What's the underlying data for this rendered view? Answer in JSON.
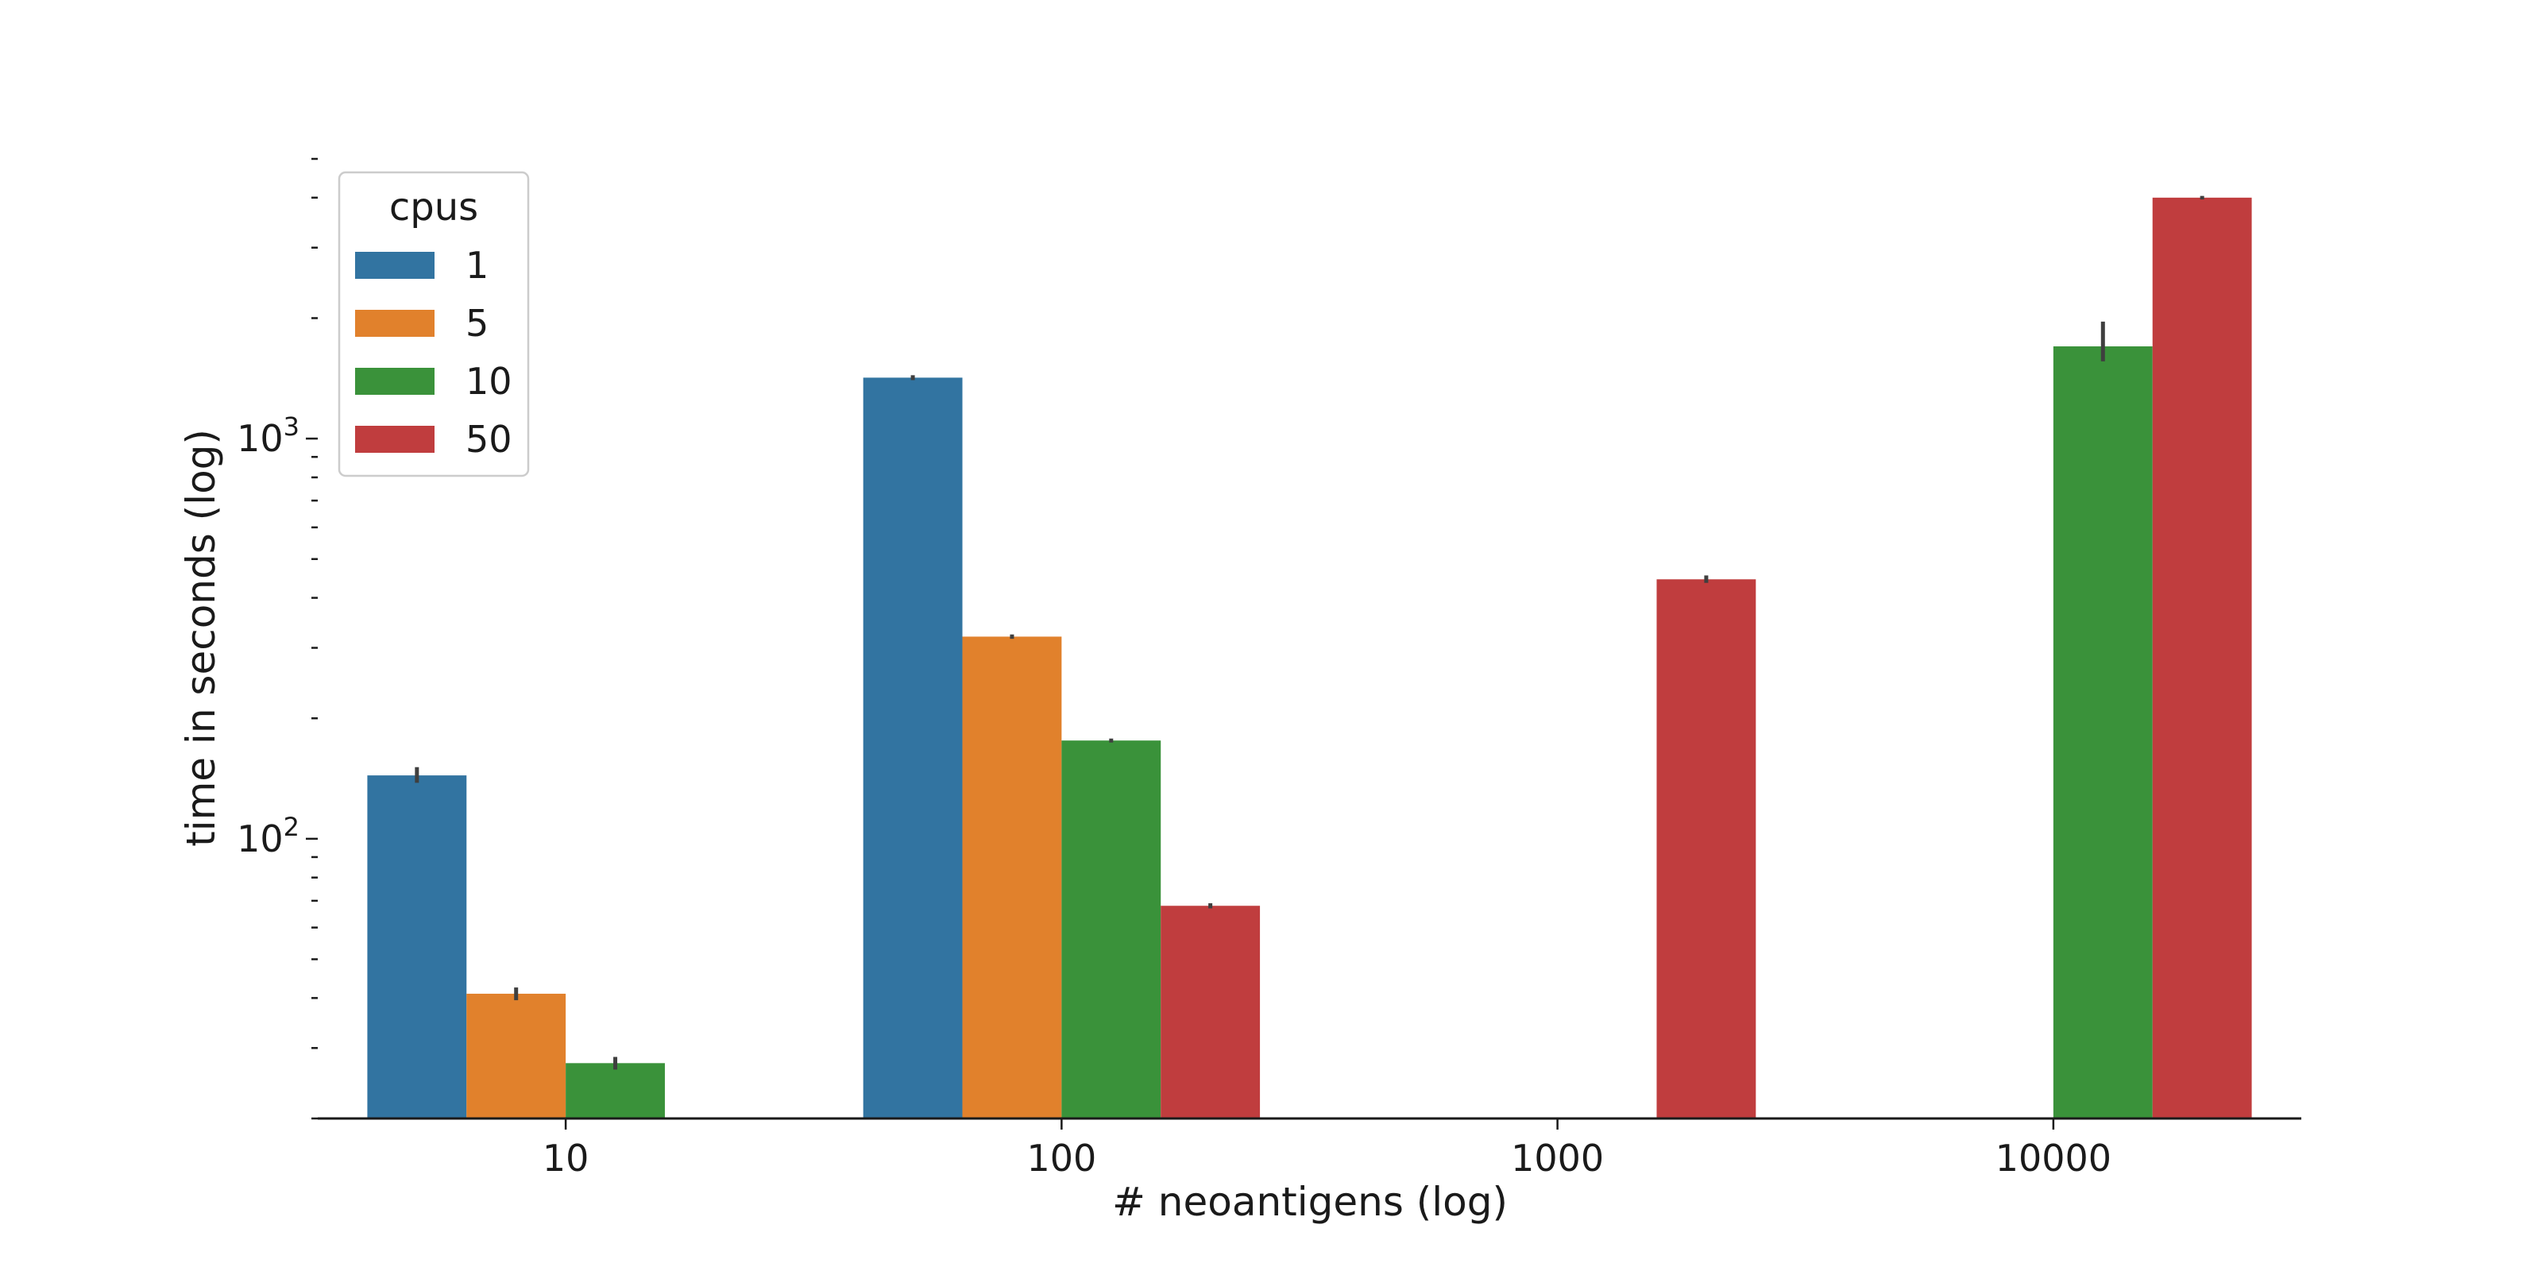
{
  "chart_data": {
    "type": "bar",
    "title": "",
    "xlabel": "# neoantigens (log)",
    "ylabel": "time in seconds (log)",
    "yscale": "log",
    "ylim": [
      20,
      5000
    ],
    "grid": false,
    "categories": [
      "10",
      "100",
      "1000",
      "10000"
    ],
    "legend": {
      "title": "cpus",
      "position": "top-left"
    },
    "y_tick_labels": [
      {
        "value": 100,
        "base": "10",
        "exponent": "2"
      },
      {
        "value": 1000,
        "base": "10",
        "exponent": "3"
      }
    ],
    "series": [
      {
        "name": "1",
        "color": "#3274a1",
        "values": [
          144,
          1420,
          null,
          null
        ],
        "err": [
          [
            138,
            151
          ],
          [
            1400,
            1440
          ],
          null,
          null
        ]
      },
      {
        "name": "5",
        "color": "#e1812c",
        "values": [
          41,
          320,
          null,
          null
        ],
        "err": [
          [
            39.5,
            42.5
          ],
          [
            316,
            324
          ],
          null,
          null
        ]
      },
      {
        "name": "10",
        "color": "#3a923a",
        "values": [
          27.5,
          176,
          null,
          1700
        ],
        "err": [
          [
            26.5,
            28.5
          ],
          [
            174,
            178
          ],
          null,
          [
            1560,
            1960
          ]
        ]
      },
      {
        "name": "50",
        "color": "#c03d3e",
        "values": [
          null,
          68,
          445,
          4000
        ],
        "err": [
          null,
          [
            67,
            69
          ],
          [
            436,
            455
          ],
          [
            3960,
            4040
          ]
        ]
      }
    ]
  }
}
